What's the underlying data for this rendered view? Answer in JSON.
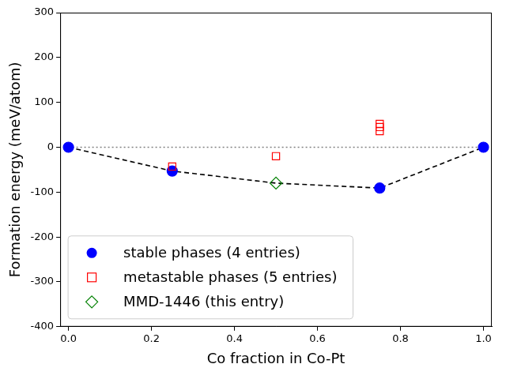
{
  "chart_data": {
    "type": "scatter",
    "xlabel": "Co fraction in Co-Pt",
    "ylabel": "Formation energy (meV/atom)",
    "xlim": [
      -0.02,
      1.02
    ],
    "xticks": [
      {
        "value": 0,
        "label": "0.0"
      },
      0.2,
      0.4,
      0.6,
      0.8,
      {
        "value": 1,
        "label": "1.0"
      }
    ],
    "ylim": [
      -400,
      300
    ],
    "yticks": [
      -400,
      -300,
      -200,
      -100,
      0,
      100,
      200,
      300
    ],
    "grid": false,
    "legend": "lower left",
    "series": [
      {
        "color": "#808080",
        "line_style": "dotted",
        "marker": "none",
        "x": [
          0,
          1
        ],
        "values": [
          0,
          0
        ]
      },
      {
        "color": "#000000",
        "line_style": "dashed",
        "marker": "none",
        "x": [
          0,
          0.25,
          0.5,
          0.75,
          1
        ],
        "values": [
          0,
          -53,
          -80,
          -91,
          0
        ]
      },
      {
        "name": "stable phases (4 entries)",
        "color": "#0000ff",
        "marker": "circle",
        "line_style": "none",
        "x": [
          0,
          0.25,
          0.75,
          1
        ],
        "values": [
          0,
          -53,
          -91,
          0
        ]
      },
      {
        "name": "metastable phases (5 entries)",
        "color": "#ff0000",
        "marker": "square",
        "line_style": "none",
        "x": [
          0.25,
          0.5,
          0.75,
          0.75,
          0.75
        ],
        "values": [
          -43,
          -20,
          52,
          45,
          36
        ]
      },
      {
        "name": "MMD-1446 (this entry)",
        "color": "#008000",
        "marker": "diamond",
        "line_style": "none",
        "x": [
          0.5
        ],
        "values": [
          -80
        ]
      }
    ]
  }
}
